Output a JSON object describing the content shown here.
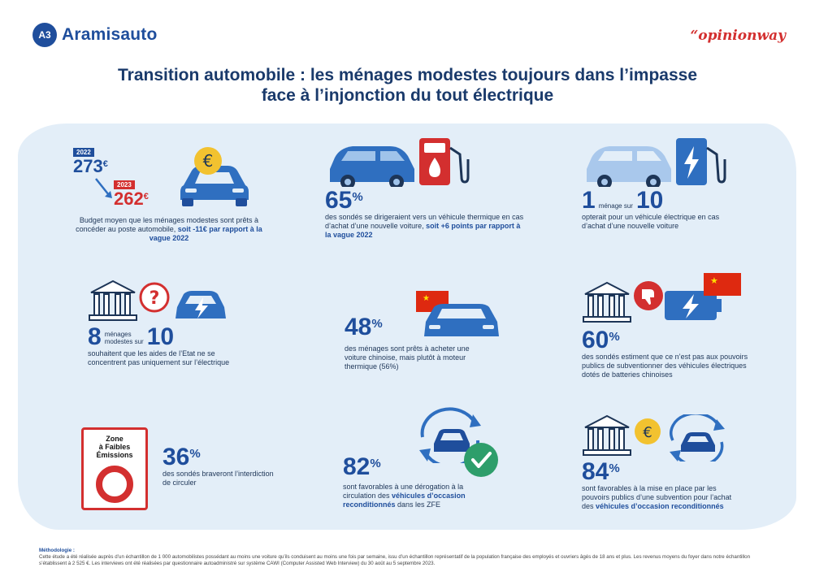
{
  "header": {
    "logo_badge": "A3",
    "logo_text": "Aramisauto",
    "partner": "“opinionway"
  },
  "title": {
    "line1": "Transition automobile : les ménages modestes toujours dans l’impasse",
    "line2": "face à l’injonction du tout électrique"
  },
  "stats": {
    "budget": {
      "year1": "2022",
      "value1": "273",
      "unit": "€",
      "year2": "2023",
      "value2": "262",
      "text": "Budget moyen que les ménages modestes sont prêts à concéder au poste automobile,",
      "highlight": "soit -11€ par rapport à la vague 2022"
    },
    "thermique": {
      "value": "65",
      "unit": "%",
      "text": "des sondés se dirigeraient vers un véhicule thermique en cas d’achat d’une nouvelle voiture,",
      "highlight": "soit +6 points par rapport à la vague 2022"
    },
    "electrique": {
      "value1": "1",
      "mid": "ménage sur",
      "value2": "10",
      "text": "opterait pour un véhicule électrique en cas d’achat d’une nouvelle voiture"
    },
    "aides": {
      "value1": "8",
      "mid1": "ménages",
      "mid2": "modestes sur",
      "value2": "10",
      "text": "souhaitent que les aides de l’Etat ne se concentrent pas uniquement sur l’électrique"
    },
    "chinoise": {
      "value": "48",
      "unit": "%",
      "text": "des ménages sont prêts à acheter une voiture chinoise, mais plutôt à moteur thermique (56%)"
    },
    "subvention_chine": {
      "value": "60",
      "unit": "%",
      "text": "des sondés estiment que ce n’est pas aux pouvoirs publics de subventionner des véhicules électriques dotés de batteries chinoises"
    },
    "zfe": {
      "sign_line1": "Zone",
      "sign_line2": "à Faibles",
      "sign_line3": "Émissions",
      "value": "36",
      "unit": "%",
      "text": "des sondés braveront l’interdiction de circuler"
    },
    "derogation": {
      "value": "82",
      "unit": "%",
      "text_a": "sont favorables à une dérogation à la circulation des",
      "highlight": "véhicules d’occasion reconditionnés",
      "text_b": "dans les ZFE"
    },
    "subvention_occasion": {
      "value": "84",
      "unit": "%",
      "text_a": "sont favorables à la mise en place par les pouvoirs publics d’une subvention pour l’achat des",
      "highlight": "véhicules d’occasion reconditionnés"
    }
  },
  "methodologie": {
    "title": "Méthodologie :",
    "text": "Cette étude a été réalisée auprès d’un échantillon de 1 000 automobilistes possédant au moins une voiture qu’ils conduisent au moins une fois par semaine, issu d’un échantillon représentatif de la population française des employés et ouvriers âgés de 18 ans et plus. Les revenus moyens du foyer dans notre échantillon s’établissent à 2 525 €. Les interviews ont été réalisées par questionnaire autoadministré sur système CAWI (Computer Assisted Web Interview) du 30 août au 5 septembre 2023."
  },
  "colors": {
    "brand_blue": "#1f4e9c",
    "accent_red": "#d32f2f",
    "panel_bg": "#e3eef8",
    "car_blue": "#2f6fc0",
    "euro_yellow": "#f2c230",
    "check_green": "#2e9e6b"
  },
  "icons": [
    "car-icon",
    "euro-coin-icon",
    "fuel-pump-icon",
    "charging-station-icon",
    "bank-building-icon",
    "question-mark-icon",
    "china-flag-icon",
    "thumbs-down-icon",
    "zfe-sign-icon",
    "recycle-arrows-icon",
    "checkmark-icon"
  ]
}
